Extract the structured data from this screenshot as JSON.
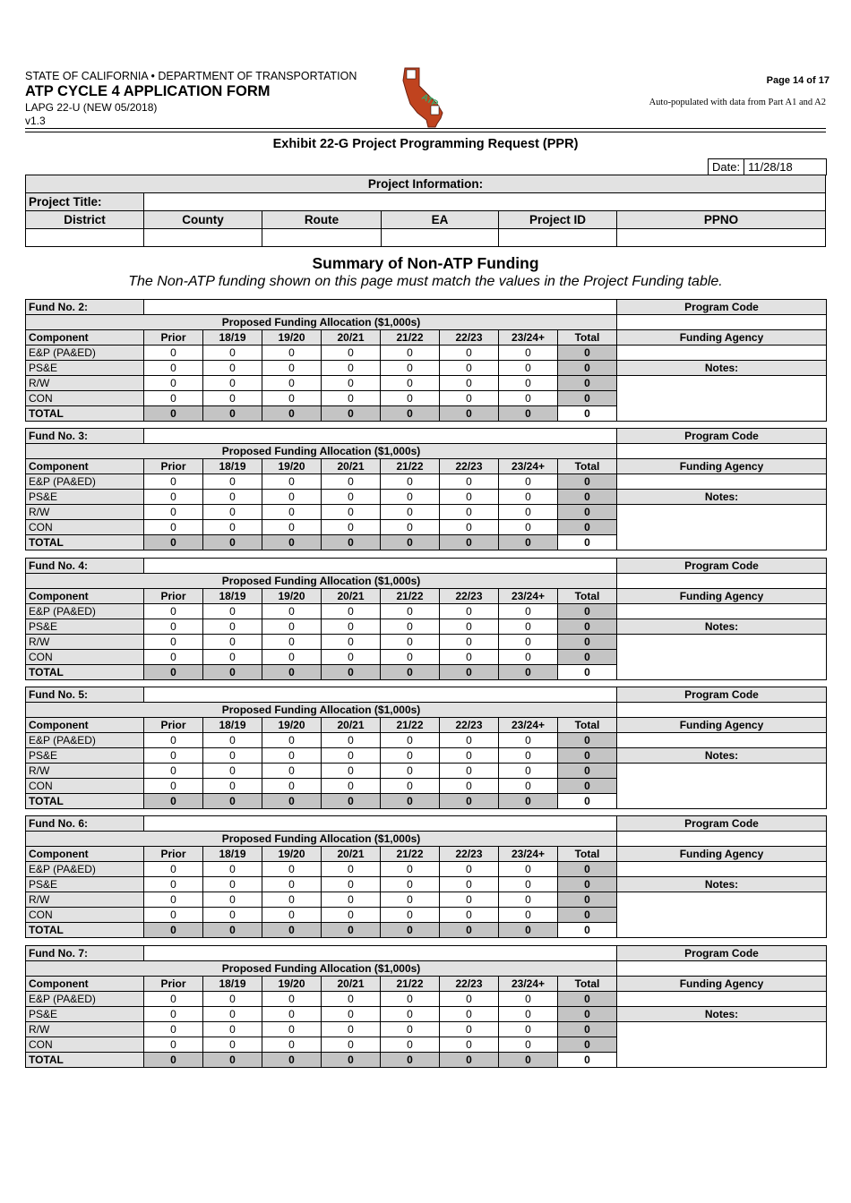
{
  "header": {
    "agency": "STATE OF CALIFORNIA • DEPARTMENT OF TRANSPORTATION",
    "form_title": "ATP CYCLE 4 APPLICATION FORM",
    "form_number": "LAPG 22-U (NEW 05/2018)",
    "version": "v1.3",
    "logo_text": "ATP",
    "page": "Page 14 of 17",
    "auto_note": "Auto-populated with data from Part A1 and A2"
  },
  "exhibit_title": "Exhibit 22-G Project Programming Request (PPR)",
  "date": {
    "label": "Date:",
    "value": "11/28/18"
  },
  "project_info": {
    "title": "Project Information:",
    "project_title_label": "Project Title:",
    "project_title_value": "",
    "columns": [
      "District",
      "County",
      "Route",
      "EA",
      "Project ID",
      "PPNO"
    ],
    "values": [
      "",
      "",
      "",
      "",
      "",
      ""
    ]
  },
  "summary": {
    "title": "Summary of Non-ATP Funding",
    "subtitle": "The Non-ATP funding shown on this page must match the values in the Project Funding table."
  },
  "fund_labels": {
    "allocation": "Proposed Funding Allocation ($1,000s)",
    "columns": [
      "Component",
      "Prior",
      "18/19",
      "19/20",
      "20/21",
      "21/22",
      "22/23",
      "23/24+",
      "Total"
    ],
    "program_code": "Program Code",
    "funding_agency": "Funding Agency",
    "notes": "Notes:"
  },
  "funds": [
    {
      "label": "Fund No. 2:",
      "rows": [
        [
          "E&P (PA&ED)",
          "0",
          "0",
          "0",
          "0",
          "0",
          "0",
          "0",
          "0"
        ],
        [
          "PS&E",
          "0",
          "0",
          "0",
          "0",
          "0",
          "0",
          "0",
          "0"
        ],
        [
          "R/W",
          "0",
          "0",
          "0",
          "0",
          "0",
          "0",
          "0",
          "0"
        ],
        [
          "CON",
          "0",
          "0",
          "0",
          "0",
          "0",
          "0",
          "0",
          "0"
        ],
        [
          "TOTAL",
          "0",
          "0",
          "0",
          "0",
          "0",
          "0",
          "0",
          "0"
        ]
      ]
    },
    {
      "label": "Fund No. 3:",
      "rows": [
        [
          "E&P (PA&ED)",
          "0",
          "0",
          "0",
          "0",
          "0",
          "0",
          "0",
          "0"
        ],
        [
          "PS&E",
          "0",
          "0",
          "0",
          "0",
          "0",
          "0",
          "0",
          "0"
        ],
        [
          "R/W",
          "0",
          "0",
          "0",
          "0",
          "0",
          "0",
          "0",
          "0"
        ],
        [
          "CON",
          "0",
          "0",
          "0",
          "0",
          "0",
          "0",
          "0",
          "0"
        ],
        [
          "TOTAL",
          "0",
          "0",
          "0",
          "0",
          "0",
          "0",
          "0",
          "0"
        ]
      ]
    },
    {
      "label": "Fund No. 4:",
      "rows": [
        [
          "E&P (PA&ED)",
          "0",
          "0",
          "0",
          "0",
          "0",
          "0",
          "0",
          "0"
        ],
        [
          "PS&E",
          "0",
          "0",
          "0",
          "0",
          "0",
          "0",
          "0",
          "0"
        ],
        [
          "R/W",
          "0",
          "0",
          "0",
          "0",
          "0",
          "0",
          "0",
          "0"
        ],
        [
          "CON",
          "0",
          "0",
          "0",
          "0",
          "0",
          "0",
          "0",
          "0"
        ],
        [
          "TOTAL",
          "0",
          "0",
          "0",
          "0",
          "0",
          "0",
          "0",
          "0"
        ]
      ]
    },
    {
      "label": "Fund No. 5:",
      "rows": [
        [
          "E&P (PA&ED)",
          "0",
          "0",
          "0",
          "0",
          "0",
          "0",
          "0",
          "0"
        ],
        [
          "PS&E",
          "0",
          "0",
          "0",
          "0",
          "0",
          "0",
          "0",
          "0"
        ],
        [
          "R/W",
          "0",
          "0",
          "0",
          "0",
          "0",
          "0",
          "0",
          "0"
        ],
        [
          "CON",
          "0",
          "0",
          "0",
          "0",
          "0",
          "0",
          "0",
          "0"
        ],
        [
          "TOTAL",
          "0",
          "0",
          "0",
          "0",
          "0",
          "0",
          "0",
          "0"
        ]
      ]
    },
    {
      "label": "Fund No. 6:",
      "rows": [
        [
          "E&P (PA&ED)",
          "0",
          "0",
          "0",
          "0",
          "0",
          "0",
          "0",
          "0"
        ],
        [
          "PS&E",
          "0",
          "0",
          "0",
          "0",
          "0",
          "0",
          "0",
          "0"
        ],
        [
          "R/W",
          "0",
          "0",
          "0",
          "0",
          "0",
          "0",
          "0",
          "0"
        ],
        [
          "CON",
          "0",
          "0",
          "0",
          "0",
          "0",
          "0",
          "0",
          "0"
        ],
        [
          "TOTAL",
          "0",
          "0",
          "0",
          "0",
          "0",
          "0",
          "0",
          "0"
        ]
      ]
    },
    {
      "label": "Fund No. 7:",
      "rows": [
        [
          "E&P (PA&ED)",
          "0",
          "0",
          "0",
          "0",
          "0",
          "0",
          "0",
          "0"
        ],
        [
          "PS&E",
          "0",
          "0",
          "0",
          "0",
          "0",
          "0",
          "0",
          "0"
        ],
        [
          "R/W",
          "0",
          "0",
          "0",
          "0",
          "0",
          "0",
          "0",
          "0"
        ],
        [
          "CON",
          "0",
          "0",
          "0",
          "0",
          "0",
          "0",
          "0",
          "0"
        ],
        [
          "TOTAL",
          "0",
          "0",
          "0",
          "0",
          "0",
          "0",
          "0",
          "0"
        ]
      ]
    }
  ]
}
